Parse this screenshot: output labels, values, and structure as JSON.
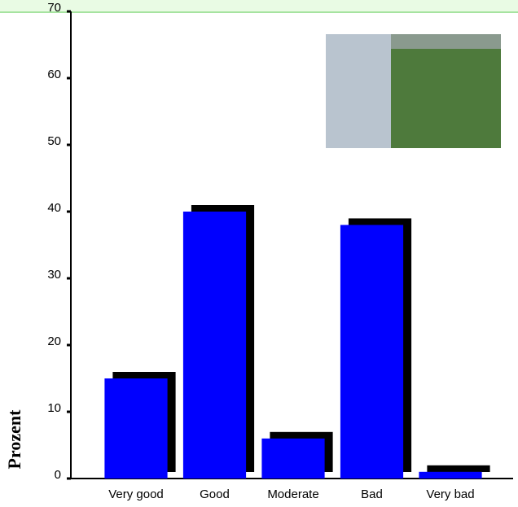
{
  "chart_data": {
    "type": "bar",
    "ylabel": "Prozent",
    "categories": [
      "Very good",
      "Good",
      "Moderate",
      "Bad",
      "Very bad"
    ],
    "values": [
      15,
      40,
      6,
      38,
      1
    ],
    "color": "#0000ff",
    "shadow_color": "#000000",
    "ylim": [
      0,
      70
    ],
    "yticks": [
      0,
      10,
      20,
      30,
      40,
      50,
      60,
      70
    ]
  }
}
